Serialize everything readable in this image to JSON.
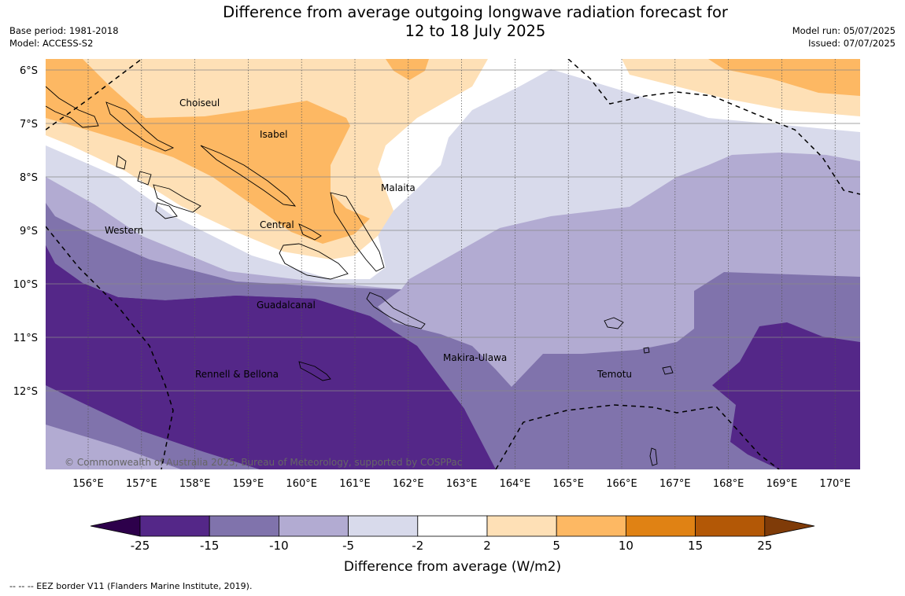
{
  "title": {
    "line1": "Difference from average outgoing longwave radiation forecast for",
    "line2": "12 to 18 July 2025"
  },
  "meta_left": {
    "base_period": "Base period: 1981-2018",
    "model": "Model: ACCESS-S2"
  },
  "meta_right": {
    "model_run": "Model run: 05/07/2025",
    "issued": "Issued: 07/07/2025"
  },
  "copyright": "© Commonwealth of Australia 2025, Bureau of Meteorology, supported by COSPPac",
  "map": {
    "lat_ticks": [
      "6°S",
      "7°S",
      "8°S",
      "9°S",
      "10°S",
      "11°S",
      "12°S"
    ],
    "lon_ticks": [
      "156°E",
      "157°E",
      "158°E",
      "159°E",
      "160°E",
      "161°E",
      "162°E",
      "163°E",
      "164°E",
      "165°E",
      "166°E",
      "167°E",
      "168°E",
      "169°E",
      "170°E"
    ],
    "region_labels": [
      "Choiseul",
      "Isabel",
      "Malaita",
      "Central",
      "Western",
      "Guadalcanal",
      "Makira-Ulawa",
      "Rennell & Bellona",
      "Temotu"
    ]
  },
  "colorbar": {
    "label": "Difference from average (W/m2)",
    "ticks": [
      "-25",
      "-15",
      "-10",
      "-5",
      "-2",
      "2",
      "5",
      "10",
      "15",
      "25"
    ],
    "colors": [
      "#2d004b",
      "#542788",
      "#8073ac",
      "#b2abd2",
      "#d8daeb",
      "#ffffff",
      "#fee0b6",
      "#fdb863",
      "#e08214",
      "#b35806",
      "#7f3b08"
    ]
  },
  "footnote": "--  --  -- EEZ border V11 (Flanders Marine Institute, 2019)."
}
